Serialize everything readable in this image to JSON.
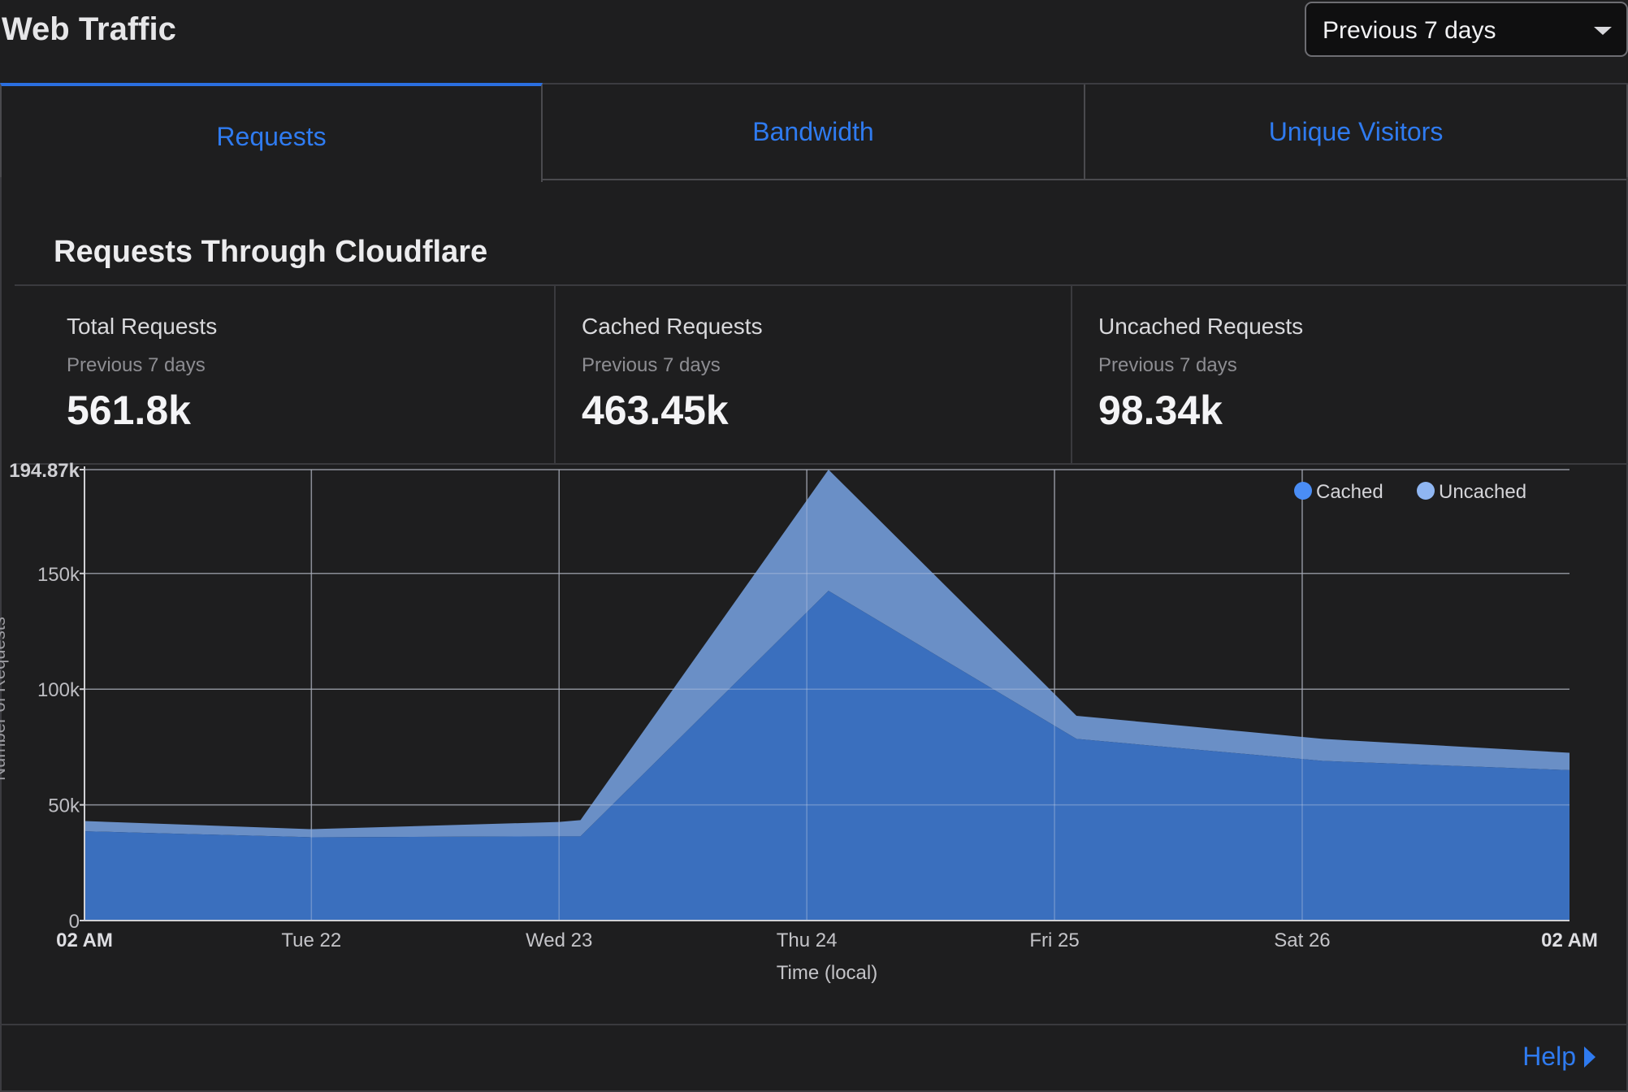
{
  "header": {
    "title": "Web Traffic",
    "period_select": "Previous 7 days"
  },
  "tabs": [
    {
      "label": "Requests",
      "active": true
    },
    {
      "label": "Bandwidth",
      "active": false
    },
    {
      "label": "Unique Visitors",
      "active": false
    }
  ],
  "section": {
    "title": "Requests Through Cloudflare"
  },
  "stats": [
    {
      "name": "Total Requests",
      "period": "Previous 7 days",
      "value": "561.8k"
    },
    {
      "name": "Cached Requests",
      "period": "Previous 7 days",
      "value": "463.45k"
    },
    {
      "name": "Uncached Requests",
      "period": "Previous 7 days",
      "value": "98.34k"
    }
  ],
  "help": {
    "label": "Help"
  },
  "colors": {
    "accent": "#2f7bf0",
    "cached": "#3a6fbe",
    "uncached": "#6a8fc6",
    "legend_cached": "#4a8df5",
    "legend_uncached": "#8fb6f2"
  },
  "chart_data": {
    "type": "area",
    "stacked": true,
    "xlabel": "Time (local)",
    "ylabel": "Number of Requests",
    "x_ticks": [
      "02 AM",
      "Tue 22",
      "Wed 23",
      "Thu 24",
      "Fri 25",
      "Sat 26",
      "02 AM"
    ],
    "y_ticks": [
      "0",
      "50k",
      "100k",
      "150k",
      "194.87k"
    ],
    "y_tick_values": [
      0,
      50000,
      100000,
      150000,
      194870
    ],
    "ylim": [
      0,
      194870
    ],
    "grid": true,
    "legend_position": "top-right",
    "series": [
      {
        "name": "Cached",
        "x": [
          "02 AM",
          "Tue 22",
          "Wed 23",
          "Wed 23 2AM",
          "Thu 24 2AM",
          "Fri 25 2AM",
          "Sat 26 2AM",
          "02 AM"
        ],
        "values": [
          38600,
          36000,
          36400,
          36400,
          142500,
          78500,
          69000,
          65000
        ]
      },
      {
        "name": "Uncached",
        "x": [
          "02 AM",
          "Tue 22",
          "Wed 23",
          "Wed 23 2AM",
          "Thu 24 2AM",
          "Fri 25 2AM",
          "Sat 26 2AM",
          "02 AM"
        ],
        "values": [
          4400,
          3500,
          6200,
          7000,
          52370,
          10000,
          9500,
          7500
        ]
      }
    ]
  }
}
